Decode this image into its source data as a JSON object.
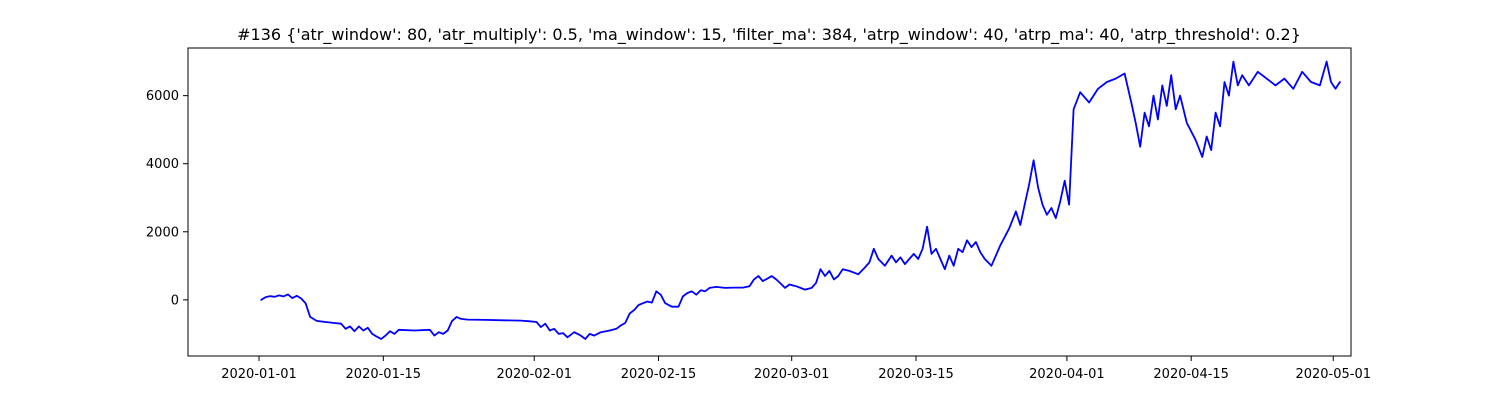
{
  "chart_data": {
    "type": "line",
    "title": "#136 {'atr_window': 80, 'atr_multiply': 0.5, 'ma_window': 15, 'filter_ma': 384, 'atrp_window': 40, 'atrp_ma': 40, 'atrp_threshold': 0.2}",
    "xlabel": "",
    "ylabel": "",
    "x_type": "date",
    "xlim": [
      "2019-12-24",
      "2020-05-03"
    ],
    "ylim": [
      -1650,
      7400
    ],
    "grid": false,
    "x_ticks": [
      "2020-01-01",
      "2020-01-15",
      "2020-02-01",
      "2020-02-15",
      "2020-03-01",
      "2020-03-15",
      "2020-04-01",
      "2020-04-15",
      "2020-05-01"
    ],
    "x_tick_labels": [
      "2020-01-01",
      "2020-01-15",
      "2020-02-01",
      "2020-02-15",
      "2020-03-01",
      "2020-03-15",
      "2020-04-01",
      "2020-04-15",
      "2020-05-01"
    ],
    "y_ticks": [
      0,
      2000,
      4000,
      6000
    ],
    "y_tick_labels": [
      "0",
      "2000",
      "4000",
      "6000"
    ],
    "series": [
      {
        "color": "#0000ff",
        "points": [
          [
            "2020-01-01",
            0
          ],
          [
            "2020-01-01",
            80
          ],
          [
            "2020-01-02",
            110
          ],
          [
            "2020-01-02",
            90
          ],
          [
            "2020-01-03",
            130
          ],
          [
            "2020-01-03",
            100
          ],
          [
            "2020-01-04",
            160
          ],
          [
            "2020-01-04",
            50
          ],
          [
            "2020-01-05",
            120
          ],
          [
            "2020-01-05",
            40
          ],
          [
            "2020-01-06",
            -100
          ],
          [
            "2020-01-06",
            -500
          ],
          [
            "2020-01-07",
            -620
          ],
          [
            "2020-01-08",
            -650
          ],
          [
            "2020-01-09",
            -680
          ],
          [
            "2020-01-10",
            -700
          ],
          [
            "2020-01-10",
            -850
          ],
          [
            "2020-01-11",
            -780
          ],
          [
            "2020-01-11",
            -920
          ],
          [
            "2020-01-12",
            -780
          ],
          [
            "2020-01-12",
            -900
          ],
          [
            "2020-01-13",
            -820
          ],
          [
            "2020-01-13",
            -1000
          ],
          [
            "2020-01-14",
            -1080
          ],
          [
            "2020-01-14",
            -1150
          ],
          [
            "2020-01-15",
            -1050
          ],
          [
            "2020-01-15",
            -920
          ],
          [
            "2020-01-16",
            -1000
          ],
          [
            "2020-01-16",
            -880
          ],
          [
            "2020-01-18",
            -900
          ],
          [
            "2020-01-20",
            -880
          ],
          [
            "2020-01-20",
            -1050
          ],
          [
            "2020-01-21",
            -950
          ],
          [
            "2020-01-21",
            -1000
          ],
          [
            "2020-01-22",
            -900
          ],
          [
            "2020-01-22",
            -620
          ],
          [
            "2020-01-23",
            -500
          ],
          [
            "2020-01-23",
            -560
          ],
          [
            "2020-01-24",
            -580
          ],
          [
            "2020-01-26",
            -590
          ],
          [
            "2020-01-28",
            -600
          ],
          [
            "2020-01-30",
            -610
          ],
          [
            "2020-01-31",
            -630
          ],
          [
            "2020-02-01",
            -650
          ],
          [
            "2020-02-01",
            -800
          ],
          [
            "2020-02-02",
            -700
          ],
          [
            "2020-02-02",
            -900
          ],
          [
            "2020-02-03",
            -850
          ],
          [
            "2020-02-03",
            -1000
          ],
          [
            "2020-02-04",
            -980
          ],
          [
            "2020-02-04",
            -1100
          ],
          [
            "2020-02-05",
            -950
          ],
          [
            "2020-02-06",
            -1050
          ],
          [
            "2020-02-06",
            -1150
          ],
          [
            "2020-02-07",
            -1000
          ],
          [
            "2020-02-07",
            -1050
          ],
          [
            "2020-02-08",
            -950
          ],
          [
            "2020-02-09",
            -900
          ],
          [
            "2020-02-10",
            -850
          ],
          [
            "2020-02-10",
            -750
          ],
          [
            "2020-02-11",
            -680
          ],
          [
            "2020-02-11",
            -400
          ],
          [
            "2020-02-12",
            -300
          ],
          [
            "2020-02-12",
            -150
          ],
          [
            "2020-02-13",
            -100
          ],
          [
            "2020-02-13",
            -50
          ],
          [
            "2020-02-14",
            -80
          ],
          [
            "2020-02-14",
            250
          ],
          [
            "2020-02-15",
            150
          ],
          [
            "2020-02-15",
            -100
          ],
          [
            "2020-02-16",
            -200
          ],
          [
            "2020-02-17",
            -200
          ],
          [
            "2020-02-17",
            100
          ],
          [
            "2020-02-18",
            200
          ],
          [
            "2020-02-18",
            250
          ],
          [
            "2020-02-19",
            150
          ],
          [
            "2020-02-19",
            280
          ],
          [
            "2020-02-20",
            250
          ],
          [
            "2020-02-20",
            350
          ],
          [
            "2020-02-21",
            380
          ],
          [
            "2020-02-22",
            350
          ],
          [
            "2020-02-23",
            360
          ],
          [
            "2020-02-24",
            360
          ],
          [
            "2020-02-25",
            400
          ],
          [
            "2020-02-25",
            600
          ],
          [
            "2020-02-26",
            700
          ],
          [
            "2020-02-26",
            550
          ],
          [
            "2020-02-27",
            620
          ],
          [
            "2020-02-27",
            700
          ],
          [
            "2020-02-28",
            600
          ],
          [
            "2020-02-28",
            480
          ],
          [
            "2020-02-29",
            350
          ],
          [
            "2020-02-29",
            450
          ],
          [
            "2020-03-01",
            400
          ],
          [
            "2020-03-02",
            300
          ],
          [
            "2020-03-03",
            350
          ],
          [
            "2020-03-03",
            500
          ],
          [
            "2020-03-04",
            900
          ],
          [
            "2020-03-04",
            700
          ],
          [
            "2020-03-05",
            850
          ],
          [
            "2020-03-05",
            600
          ],
          [
            "2020-03-06",
            700
          ],
          [
            "2020-03-06",
            900
          ],
          [
            "2020-03-07",
            850
          ],
          [
            "2020-03-08",
            750
          ],
          [
            "2020-03-09",
            950
          ],
          [
            "2020-03-09",
            1100
          ],
          [
            "2020-03-10",
            1500
          ],
          [
            "2020-03-10",
            1200
          ],
          [
            "2020-03-11",
            1000
          ],
          [
            "2020-03-12",
            1300
          ],
          [
            "2020-03-12",
            1100
          ],
          [
            "2020-03-13",
            1250
          ],
          [
            "2020-03-13",
            1050
          ],
          [
            "2020-03-14",
            1200
          ],
          [
            "2020-03-14",
            1350
          ],
          [
            "2020-03-15",
            1200
          ],
          [
            "2020-03-15",
            1500
          ],
          [
            "2020-03-16",
            2150
          ],
          [
            "2020-03-16",
            1350
          ],
          [
            "2020-03-17",
            1500
          ],
          [
            "2020-03-17",
            1200
          ],
          [
            "2020-03-18",
            900
          ],
          [
            "2020-03-18",
            1300
          ],
          [
            "2020-03-19",
            1000
          ],
          [
            "2020-03-19",
            1500
          ],
          [
            "2020-03-20",
            1400
          ],
          [
            "2020-03-20",
            1750
          ],
          [
            "2020-03-21",
            1550
          ],
          [
            "2020-03-21",
            1700
          ],
          [
            "2020-03-22",
            1400
          ],
          [
            "2020-03-22",
            1200
          ],
          [
            "2020-03-23",
            1000
          ],
          [
            "2020-03-24",
            1600
          ],
          [
            "2020-03-25",
            2100
          ],
          [
            "2020-03-26",
            2600
          ],
          [
            "2020-03-26",
            2200
          ],
          [
            "2020-03-27",
            2800
          ],
          [
            "2020-03-27",
            3400
          ],
          [
            "2020-03-28",
            4100
          ],
          [
            "2020-03-28",
            3300
          ],
          [
            "2020-03-29",
            2800
          ],
          [
            "2020-03-29",
            2500
          ],
          [
            "2020-03-30",
            2700
          ],
          [
            "2020-03-30",
            2400
          ],
          [
            "2020-03-31",
            2900
          ],
          [
            "2020-03-31",
            3500
          ],
          [
            "2020-04-01",
            2800
          ],
          [
            "2020-04-01",
            5600
          ],
          [
            "2020-04-02",
            6100
          ],
          [
            "2020-04-03",
            5800
          ],
          [
            "2020-04-04",
            6200
          ],
          [
            "2020-04-05",
            6400
          ],
          [
            "2020-04-06",
            6500
          ],
          [
            "2020-04-07",
            6650
          ],
          [
            "2020-04-08",
            5800
          ],
          [
            "2020-04-08",
            5200
          ],
          [
            "2020-04-09",
            4500
          ],
          [
            "2020-04-09",
            5500
          ],
          [
            "2020-04-10",
            5100
          ],
          [
            "2020-04-10",
            6000
          ],
          [
            "2020-04-11",
            5300
          ],
          [
            "2020-04-11",
            6300
          ],
          [
            "2020-04-12",
            5700
          ],
          [
            "2020-04-12",
            6600
          ],
          [
            "2020-04-13",
            5600
          ],
          [
            "2020-04-13",
            6000
          ],
          [
            "2020-04-14",
            5200
          ],
          [
            "2020-04-15",
            4700
          ],
          [
            "2020-04-16",
            4200
          ],
          [
            "2020-04-16",
            4800
          ],
          [
            "2020-04-17",
            4400
          ],
          [
            "2020-04-17",
            5500
          ],
          [
            "2020-04-18",
            5100
          ],
          [
            "2020-04-18",
            6400
          ],
          [
            "2020-04-19",
            6000
          ],
          [
            "2020-04-19",
            7000
          ],
          [
            "2020-04-20",
            6300
          ],
          [
            "2020-04-20",
            6600
          ],
          [
            "2020-04-21",
            6300
          ],
          [
            "2020-04-22",
            6700
          ],
          [
            "2020-04-23",
            6500
          ],
          [
            "2020-04-24",
            6300
          ],
          [
            "2020-04-25",
            6500
          ],
          [
            "2020-04-26",
            6200
          ],
          [
            "2020-04-27",
            6700
          ],
          [
            "2020-04-28",
            6400
          ],
          [
            "2020-04-29",
            6300
          ],
          [
            "2020-04-30",
            7000
          ],
          [
            "2020-04-30",
            6400
          ],
          [
            "2020-05-01",
            6200
          ],
          [
            "2020-05-01",
            6400
          ]
        ]
      }
    ]
  }
}
